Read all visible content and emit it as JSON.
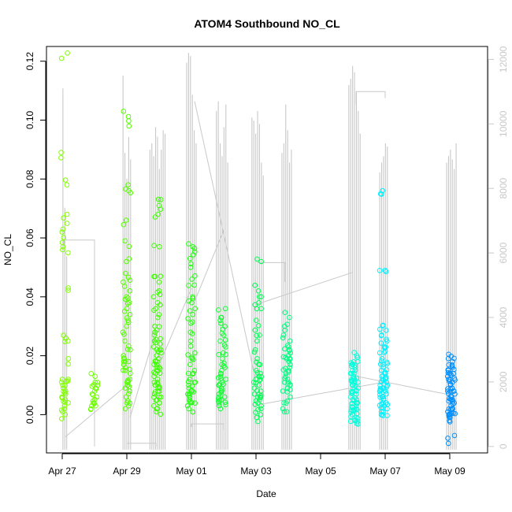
{
  "chart_data": {
    "type": "scatter",
    "title": "ATOM4 Southbound NO_CL",
    "xlabel": "Date",
    "ylabel": "NO_CL",
    "x_ticks": [
      "Apr 27",
      "Apr 29",
      "May 01",
      "May 03",
      "May 05",
      "May 07",
      "May 09"
    ],
    "xlim": [
      "Apr 26.9",
      "May 10.3"
    ],
    "ylim": [
      -0.013,
      0.125
    ],
    "y_ticks": [
      0.0,
      0.02,
      0.04,
      0.06,
      0.08,
      0.1,
      0.12
    ],
    "y_right_ticks": [
      0,
      2000,
      4000,
      6000,
      8000,
      10000,
      12000
    ],
    "y_right_lim": [
      -200,
      12400
    ],
    "grid": false,
    "legend": "none",
    "series": [
      {
        "color_note": "points colored by time, yellow-green to blue",
        "clusters": [
          {
            "day": 0.08,
            "color": "#80ff00",
            "values": [
              0.121,
              0.089,
              0.078,
              0.068,
              0.063,
              0.062,
              0.057,
              0.056,
              0.043,
              0.026,
              0.025,
              0.019,
              0.012,
              0.011,
              0.01,
              0.009,
              0.008,
              0.007,
              0.006,
              0.005,
              0.004,
              0.003,
              0.0,
              0.002
            ]
          },
          {
            "day": 1.0,
            "color": "#70ff00",
            "values": [
              0.013,
              0.011,
              0.01,
              0.009,
              0.008,
              0.007,
              0.006,
              0.004,
              0.003,
              0.002,
              0.003
            ]
          },
          {
            "day": 2.0,
            "color": "#55ff00",
            "values": [
              0.103,
              0.098,
              0.078,
              0.076,
              0.066,
              0.059,
              0.052,
              0.048,
              0.045,
              0.042,
              0.04,
              0.038,
              0.036,
              0.034,
              0.032,
              0.03,
              0.028,
              0.025,
              0.022,
              0.02,
              0.019,
              0.018,
              0.016,
              0.015,
              0.014,
              0.012,
              0.011,
              0.01,
              0.009,
              0.008,
              0.006,
              0.004,
              0.003
            ]
          },
          {
            "day": 2.95,
            "color": "#3cff00",
            "values": [
              0.073,
              0.071,
              0.068,
              0.057,
              0.047,
              0.045,
              0.042,
              0.04,
              0.038,
              0.036,
              0.033,
              0.03,
              0.028,
              0.027,
              0.025,
              0.024,
              0.023,
              0.022,
              0.021,
              0.02,
              0.019,
              0.018,
              0.017,
              0.016,
              0.015,
              0.014,
              0.013,
              0.012,
              0.011,
              0.01,
              0.009,
              0.008,
              0.007,
              0.006,
              0.005,
              0.004,
              0.003,
              0.002,
              0.001
            ]
          },
          {
            "day": 4.0,
            "color": "#22ff10",
            "values": [
              0.058,
              0.057,
              0.053,
              0.05,
              0.046,
              0.044,
              0.04,
              0.038,
              0.036,
              0.034,
              0.031,
              0.028,
              0.025,
              0.021,
              0.019,
              0.017,
              0.015,
              0.014,
              0.012,
              0.011,
              0.01,
              0.009,
              0.008,
              0.007,
              0.006,
              0.005,
              0.004,
              0.003,
              0.002
            ]
          },
          {
            "day": 4.95,
            "color": "#10ff30",
            "values": [
              0.036,
              0.033,
              0.031,
              0.029,
              0.027,
              0.025,
              0.023,
              0.021,
              0.019,
              0.017,
              0.016,
              0.015,
              0.014,
              0.013,
              0.012,
              0.011,
              0.01,
              0.009,
              0.008,
              0.007,
              0.006,
              0.005,
              0.004,
              0.003,
              0.002
            ]
          },
          {
            "day": 6.05,
            "color": "#00ff55",
            "values": [
              0.052,
              0.042,
              0.04,
              0.038,
              0.036,
              0.032,
              0.027,
              0.025,
              0.022,
              0.019,
              0.017,
              0.015,
              0.014,
              0.013,
              0.012,
              0.011,
              0.01,
              0.009,
              0.008,
              0.007,
              0.006,
              0.005,
              0.004,
              0.003,
              0.002,
              0.0,
              -0.001
            ]
          },
          {
            "day": 6.95,
            "color": "#00ff80",
            "values": [
              0.033,
              0.03,
              0.027,
              0.025,
              0.023,
              0.022,
              0.021,
              0.02,
              0.019,
              0.018,
              0.017,
              0.016,
              0.015,
              0.014,
              0.013,
              0.012,
              0.011,
              0.01,
              0.009,
              0.008,
              0.006,
              0.004,
              0.002,
              0.001
            ]
          },
          {
            "day": 9.05,
            "color": "#00ffdd",
            "values": [
              0.02,
              0.018,
              0.017,
              0.016,
              0.015,
              0.014,
              0.013,
              0.012,
              0.011,
              0.01,
              0.009,
              0.008,
              0.007,
              0.006,
              0.005,
              0.004,
              0.003,
              0.002,
              0.001,
              0.0,
              -0.001,
              -0.002,
              -0.003
            ]
          },
          {
            "day": 9.95,
            "color": "#00f0ff",
            "values": [
              0.075,
              0.049,
              0.029,
              0.027,
              0.025,
              0.023,
              0.021,
              0.019,
              0.017,
              0.015,
              0.014,
              0.013,
              0.012,
              0.011,
              0.01,
              0.009,
              0.008,
              0.007,
              0.006,
              0.005,
              0.004,
              0.003,
              0.002,
              0.001,
              0.0
            ]
          },
          {
            "day": 12.05,
            "color": "#0090ff",
            "values": [
              0.019,
              0.018,
              0.016,
              0.015,
              0.014,
              0.013,
              0.012,
              0.011,
              0.01,
              0.009,
              0.008,
              0.007,
              0.006,
              0.005,
              0.004,
              0.003,
              0.002,
              0.001,
              0.0,
              -0.001,
              -0.002,
              -0.008
            ]
          }
        ]
      },
      {
        "color_note": "gray line, right axis",
        "color": "#c8c8c8",
        "spikes": [
          {
            "day": 0.08,
            "values": [
              11100,
              7400,
              5900
            ]
          },
          {
            "day": 2.0,
            "values": [
              11500,
              9100,
              8300,
              9600,
              8900
            ]
          },
          {
            "day": 2.95,
            "values": [
              9200,
              9400,
              9000,
              9900,
              9600,
              8600,
              9200,
              9800,
              9700
            ]
          },
          {
            "day": 4.0,
            "values": [
              11900,
              12200,
              12100,
              10900,
              9800,
              9400
            ]
          },
          {
            "day": 4.95,
            "values": [
              10400,
              10700,
              9400,
              9000,
              9900,
              10600,
              8800
            ]
          },
          {
            "day": 6.05,
            "values": [
              10200,
              10100,
              9700,
              10400,
              10000,
              8800,
              8400
            ]
          },
          {
            "day": 6.95,
            "values": [
              9100,
              9400,
              10600,
              9800,
              8800,
              9200
            ]
          },
          {
            "day": 9.05,
            "values": [
              11200,
              11400,
              11800,
              11600,
              11000,
              10400,
              9700
            ]
          },
          {
            "day": 9.95,
            "values": [
              8500,
              8800,
              9000,
              9400,
              9300
            ]
          },
          {
            "day": 12.05,
            "values": [
              8800,
              9000,
              9200,
              8900,
              8600,
              9400
            ]
          }
        ],
        "connectors": [
          {
            "x": [
              0.05,
              0.05,
              1.0,
              1.0
            ],
            "y": [
              6200,
              6400,
              6400,
              0
            ]
          },
          {
            "x": [
              0.1,
              2.0
            ],
            "y": [
              300,
              1900
            ]
          },
          {
            "x": [
              2.0,
              2.0,
              2.9,
              2.9
            ],
            "y": [
              0,
              100,
              100,
              0
            ]
          },
          {
            "x": [
              2.1,
              2.9
            ],
            "y": [
              900,
              3600
            ]
          },
          {
            "x": [
              2.95,
              4.0
            ],
            "y": [
              2400,
              4900
            ]
          },
          {
            "x": [
              4.0,
              4.0,
              5.0,
              5.0
            ],
            "y": [
              600,
              700,
              700,
              500
            ]
          },
          {
            "x": [
              4.1,
              5.0
            ],
            "y": [
              4500,
              6700
            ]
          },
          {
            "x": [
              4.1,
              6.0
            ],
            "y": [
              10700,
              2000
            ]
          },
          {
            "x": [
              6.05,
              6.05,
              6.9,
              6.9
            ],
            "y": [
              5400,
              5700,
              5700,
              5100
            ]
          },
          {
            "x": [
              6.0,
              9.0
            ],
            "y": [
              4400,
              5400
            ]
          },
          {
            "x": [
              9.1,
              9.1,
              10.0,
              10.0
            ],
            "y": [
              10600,
              11000,
              11000,
              10800
            ]
          },
          {
            "x": [
              9.0,
              12.0
            ],
            "y": [
              2200,
              1600
            ]
          },
          {
            "x": [
              6.1,
              10.0
            ],
            "y": [
              1300,
              2000
            ]
          }
        ]
      }
    ]
  }
}
